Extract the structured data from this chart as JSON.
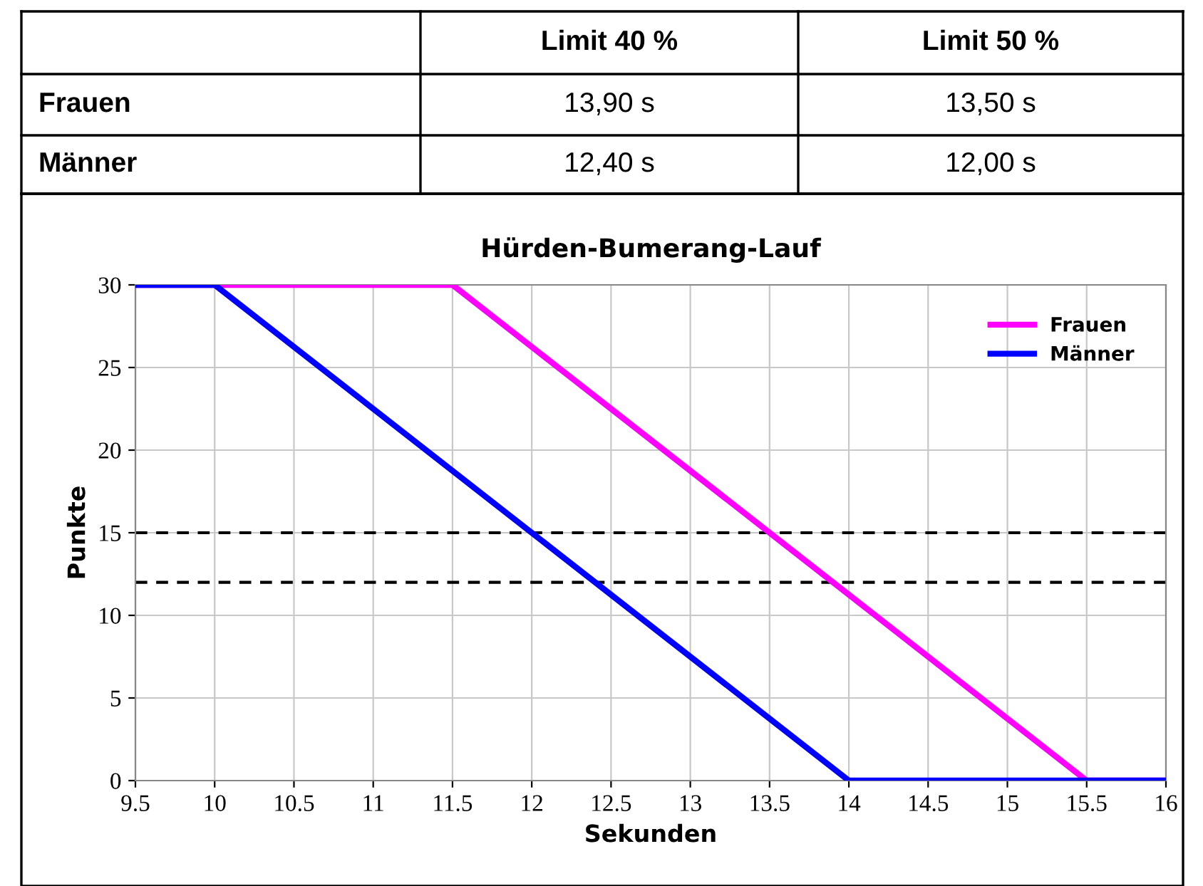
{
  "chart_data": [
    {
      "type": "other",
      "annotations": [
        "Limit 40 %",
        "Limit 50 %",
        "Frauen",
        "13,90 s",
        "13,50 s",
        "Männer",
        "12,40 s",
        "12,00 s"
      ]
    },
    {
      "type": "line",
      "title": "Hürden-Bumerang-Lauf",
      "xlabel": "Sekunden",
      "ylabel": "Punkte",
      "series": [
        {
          "name": "Frauen",
          "color": "#ff00ff",
          "x": [
            9.5,
            11.5,
            15.5,
            16
          ],
          "values": [
            30,
            30,
            0,
            0
          ]
        },
        {
          "name": "Männer",
          "color": "#0000ff",
          "x": [
            9.5,
            10,
            14,
            16
          ],
          "values": [
            30,
            30,
            0,
            0
          ]
        }
      ],
      "xlim": [
        9.5,
        16
      ],
      "xticks": [
        9.5,
        10,
        10.5,
        11,
        11.5,
        12,
        12.5,
        13,
        13.5,
        14,
        14.5,
        15,
        15.5,
        16
      ],
      "ylim": [
        0,
        30
      ],
      "yticks": [
        0,
        5,
        10,
        15,
        20,
        25,
        30
      ],
      "ref_lines": [
        {
          "axis": "y",
          "value": 15,
          "color": "#000000",
          "line_style": "dashed"
        },
        {
          "axis": "y",
          "value": 12,
          "color": "#000000",
          "line_style": "dashed"
        }
      ],
      "grid": true,
      "legend": "top right",
      "line_style": "solid",
      "marker": "none"
    }
  ]
}
